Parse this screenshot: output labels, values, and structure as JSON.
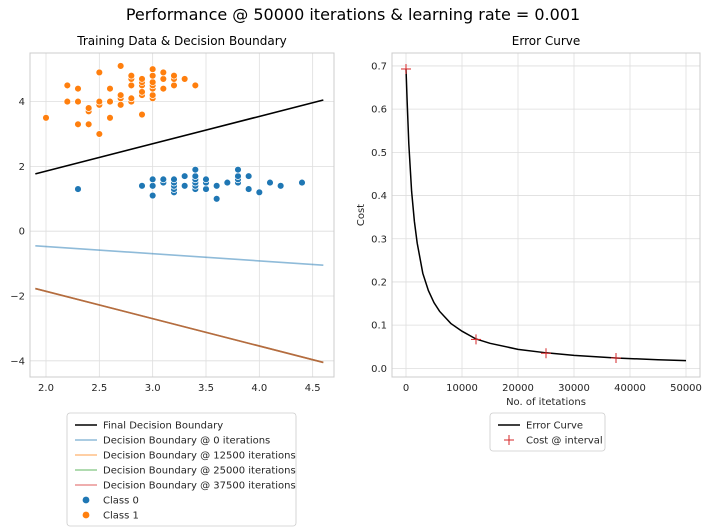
{
  "figure": {
    "suptitle": "Performance @ 50000 iterations & learning rate = 0.001"
  },
  "chart_data": [
    {
      "type": "scatter",
      "title": "Training Data & Decision Boundary",
      "xlabel": "",
      "ylabel": "",
      "xlim": [
        1.85,
        4.7
      ],
      "ylim": [
        -4.5,
        5.5
      ],
      "xticks": [
        2.0,
        2.5,
        3.0,
        3.5,
        4.0,
        4.5
      ],
      "xtick_labels": [
        "2.0",
        "2.5",
        "3.0",
        "3.5",
        "4.0",
        "4.5"
      ],
      "yticks": [
        -4,
        -2,
        0,
        2,
        4
      ],
      "ytick_labels": [
        "−4",
        "−2",
        "0",
        "2",
        "4"
      ],
      "grid": true,
      "legend_position": "below",
      "lines": [
        {
          "name": "Final Decision Boundary",
          "color": "#000000",
          "opacity": 1,
          "x": [
            1.9,
            4.6
          ],
          "y": [
            1.77,
            4.05
          ]
        },
        {
          "name": "Decision Boundary @ 0 iterations",
          "color": "#1f77b4",
          "opacity": 0.5,
          "x": [
            1.9,
            4.6
          ],
          "y": [
            -0.45,
            -1.05
          ]
        },
        {
          "name": "Decision Boundary @ 12500 iterations",
          "color": "#ff7f0e",
          "opacity": 0.5,
          "x": [
            1.9,
            4.6
          ],
          "y": [
            -1.77,
            -4.05
          ]
        },
        {
          "name": "Decision Boundary @ 25000 iterations",
          "color": "#2ca02c",
          "opacity": 0.5,
          "x": [
            1.9,
            4.6
          ],
          "y": [
            -1.77,
            -4.05
          ]
        },
        {
          "name": "Decision Boundary @ 37500 iterations",
          "color": "#d62728",
          "opacity": 0.5,
          "x": [
            1.9,
            4.6
          ],
          "y": [
            -1.77,
            -4.05
          ]
        }
      ],
      "series": [
        {
          "name": "Class 0",
          "color": "#1f77b4",
          "points": [
            [
              2.3,
              1.3
            ],
            [
              2.9,
              1.4
            ],
            [
              3.0,
              1.1
            ],
            [
              3.0,
              1.4
            ],
            [
              3.0,
              1.6
            ],
            [
              3.1,
              1.5
            ],
            [
              3.1,
              1.6
            ],
            [
              3.2,
              1.2
            ],
            [
              3.2,
              1.3
            ],
            [
              3.2,
              1.4
            ],
            [
              3.2,
              1.5
            ],
            [
              3.2,
              1.6
            ],
            [
              3.3,
              1.4
            ],
            [
              3.3,
              1.7
            ],
            [
              3.4,
              1.3
            ],
            [
              3.4,
              1.4
            ],
            [
              3.4,
              1.5
            ],
            [
              3.4,
              1.6
            ],
            [
              3.4,
              1.7
            ],
            [
              3.4,
              1.9
            ],
            [
              3.5,
              1.3
            ],
            [
              3.5,
              1.5
            ],
            [
              3.5,
              1.6
            ],
            [
              3.6,
              1.0
            ],
            [
              3.6,
              1.4
            ],
            [
              3.7,
              1.5
            ],
            [
              3.8,
              1.5
            ],
            [
              3.8,
              1.6
            ],
            [
              3.8,
              1.7
            ],
            [
              3.8,
              1.9
            ],
            [
              3.9,
              1.3
            ],
            [
              3.9,
              1.7
            ],
            [
              4.0,
              1.2
            ],
            [
              4.1,
              1.5
            ],
            [
              4.2,
              1.4
            ],
            [
              4.4,
              1.5
            ]
          ]
        },
        {
          "name": "Class 1",
          "color": "#ff7f0e",
          "points": [
            [
              2.0,
              3.5
            ],
            [
              2.2,
              4.0
            ],
            [
              2.2,
              4.5
            ],
            [
              2.3,
              3.3
            ],
            [
              2.3,
              4.0
            ],
            [
              2.3,
              4.4
            ],
            [
              2.4,
              3.3
            ],
            [
              2.4,
              3.7
            ],
            [
              2.4,
              3.8
            ],
            [
              2.5,
              3.0
            ],
            [
              2.5,
              3.9
            ],
            [
              2.5,
              4.0
            ],
            [
              2.5,
              4.9
            ],
            [
              2.6,
              3.5
            ],
            [
              2.6,
              4.0
            ],
            [
              2.6,
              4.4
            ],
            [
              2.7,
              3.9
            ],
            [
              2.7,
              4.1
            ],
            [
              2.7,
              4.2
            ],
            [
              2.7,
              5.1
            ],
            [
              2.8,
              4.0
            ],
            [
              2.8,
              4.1
            ],
            [
              2.8,
              4.5
            ],
            [
              2.8,
              4.7
            ],
            [
              2.8,
              4.8
            ],
            [
              2.9,
              3.6
            ],
            [
              2.9,
              4.2
            ],
            [
              2.9,
              4.3
            ],
            [
              2.9,
              4.5
            ],
            [
              2.9,
              4.6
            ],
            [
              2.9,
              4.7
            ],
            [
              3.0,
              4.1
            ],
            [
              3.0,
              4.2
            ],
            [
              3.0,
              4.4
            ],
            [
              3.0,
              4.5
            ],
            [
              3.0,
              4.6
            ],
            [
              3.0,
              4.8
            ],
            [
              3.0,
              5.0
            ],
            [
              3.1,
              4.4
            ],
            [
              3.1,
              4.7
            ],
            [
              3.1,
              4.9
            ],
            [
              3.2,
              4.5
            ],
            [
              3.2,
              4.7
            ],
            [
              3.2,
              4.8
            ],
            [
              3.3,
              4.7
            ],
            [
              3.4,
              4.5
            ]
          ]
        }
      ],
      "legend": [
        {
          "label": "Final Decision Boundary",
          "kind": "line",
          "color": "#000000",
          "opacity": 1
        },
        {
          "label": "Decision Boundary @ 0 iterations",
          "kind": "line",
          "color": "#1f77b4",
          "opacity": 0.5
        },
        {
          "label": "Decision Boundary @ 12500 iterations",
          "kind": "line",
          "color": "#ff7f0e",
          "opacity": 0.5
        },
        {
          "label": "Decision Boundary @ 25000 iterations",
          "kind": "line",
          "color": "#2ca02c",
          "opacity": 0.5
        },
        {
          "label": "Decision Boundary @ 37500 iterations",
          "kind": "line",
          "color": "#d62728",
          "opacity": 0.5
        },
        {
          "label": "Class 0",
          "kind": "dot",
          "color": "#1f77b4",
          "opacity": 1
        },
        {
          "label": "Class 1",
          "kind": "dot",
          "color": "#ff7f0e",
          "opacity": 1
        }
      ]
    },
    {
      "type": "line",
      "title": "Error Curve",
      "xlabel": "No. of itetations",
      "ylabel": "Cost",
      "xlim": [
        -2500,
        52500
      ],
      "ylim": [
        -0.02,
        0.73
      ],
      "xticks": [
        0,
        10000,
        20000,
        30000,
        40000,
        50000
      ],
      "xtick_labels": [
        "0",
        "10000",
        "20000",
        "30000",
        "40000",
        "50000"
      ],
      "yticks": [
        0.0,
        0.1,
        0.2,
        0.3,
        0.4,
        0.5,
        0.6,
        0.7
      ],
      "ytick_labels": [
        "0.0",
        "0.1",
        "0.2",
        "0.3",
        "0.4",
        "0.5",
        "0.6",
        "0.7"
      ],
      "grid": true,
      "legend_position": "below",
      "series": [
        {
          "name": "Error Curve",
          "color": "#000000",
          "x": [
            0,
            200,
            500,
            1000,
            1500,
            2000,
            3000,
            4000,
            5000,
            6000,
            8000,
            10000,
            12500,
            15000,
            20000,
            25000,
            30000,
            37500,
            45000,
            50000
          ],
          "y": [
            0.693,
            0.62,
            0.52,
            0.41,
            0.34,
            0.29,
            0.22,
            0.18,
            0.152,
            0.132,
            0.104,
            0.086,
            0.068,
            0.058,
            0.044,
            0.036,
            0.03,
            0.024,
            0.02,
            0.018
          ]
        }
      ],
      "markers": {
        "name": "Cost @ interval",
        "color": "#d62728",
        "symbol": "+",
        "x": [
          0,
          12500,
          25000,
          37500
        ],
        "y": [
          0.693,
          0.067,
          0.035,
          0.024
        ]
      },
      "legend": [
        {
          "label": "Error Curve",
          "kind": "line",
          "color": "#000000",
          "opacity": 1
        },
        {
          "label": "Cost @ interval",
          "kind": "plus",
          "color": "#d62728",
          "opacity": 1
        }
      ]
    }
  ]
}
